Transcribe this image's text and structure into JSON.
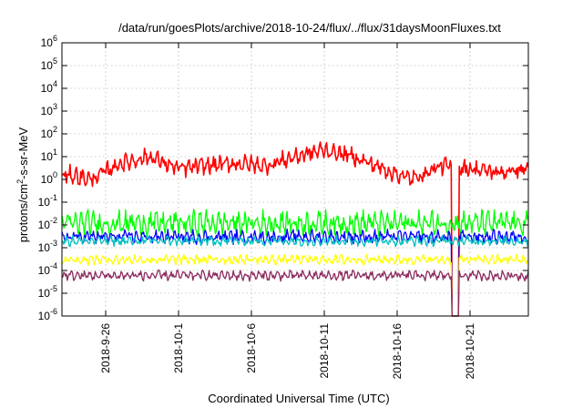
{
  "chart_data": {
    "type": "line",
    "title": "/data/run/goesPlots/archive/2018-10-24/flux/../flux/31daysMoonFluxes.txt",
    "xlabel": "Coordinated Universal Time (UTC)",
    "ylabel": {
      "base": "protons/cm",
      "sup": "2",
      "rest": "-s-sr-MeV"
    },
    "yscale": "log",
    "ylim": [
      1e-06,
      1000000.0
    ],
    "yticks": [
      {
        "base": "10",
        "exp": "-6"
      },
      {
        "base": "10",
        "exp": "-5"
      },
      {
        "base": "10",
        "exp": "-4"
      },
      {
        "base": "10",
        "exp": "-3"
      },
      {
        "base": "10",
        "exp": "-2"
      },
      {
        "base": "10",
        "exp": "-1"
      },
      {
        "base": "10",
        "exp": "0"
      },
      {
        "base": "10",
        "exp": "1"
      },
      {
        "base": "10",
        "exp": "2"
      },
      {
        "base": "10",
        "exp": "3"
      },
      {
        "base": "10",
        "exp": "4"
      },
      {
        "base": "10",
        "exp": "5"
      },
      {
        "base": "10",
        "exp": "6"
      }
    ],
    "xlim": [
      "2018-09-23",
      "2018-10-25"
    ],
    "xticks": [
      "2018-9-26",
      "2018-10-1",
      "2018-10-6",
      "2018-10-11",
      "2018-10-16",
      "2018-10-21"
    ],
    "grid": true,
    "series": [
      {
        "color": "#ff0000",
        "typical": 3,
        "x": [
          "2018-09-23",
          "2018-09-25",
          "2018-09-27",
          "2018-09-29",
          "2018-10-01",
          "2018-10-03",
          "2018-10-05",
          "2018-10-07",
          "2018-10-09",
          "2018-10-11",
          "2018-10-13",
          "2018-10-15",
          "2018-10-17",
          "2018-10-19",
          "2018-10-21",
          "2018-10-23",
          "2018-10-25"
        ],
        "y": [
          2,
          1,
          5,
          10,
          3,
          4,
          5,
          4,
          10,
          20,
          10,
          3,
          1,
          4,
          3,
          2,
          3
        ]
      },
      {
        "color": "#00ff00",
        "typical": 0.012
      },
      {
        "color": "#0000ff",
        "typical": 0.003
      },
      {
        "color": "#00c0c0",
        "typical": 0.002
      },
      {
        "color": "#ffff00",
        "typical": 0.0003
      },
      {
        "color": "#8b2a5e",
        "typical": 6e-05
      }
    ],
    "dropout": {
      "date": "2018-10-20",
      "min": 1e-06
    }
  }
}
